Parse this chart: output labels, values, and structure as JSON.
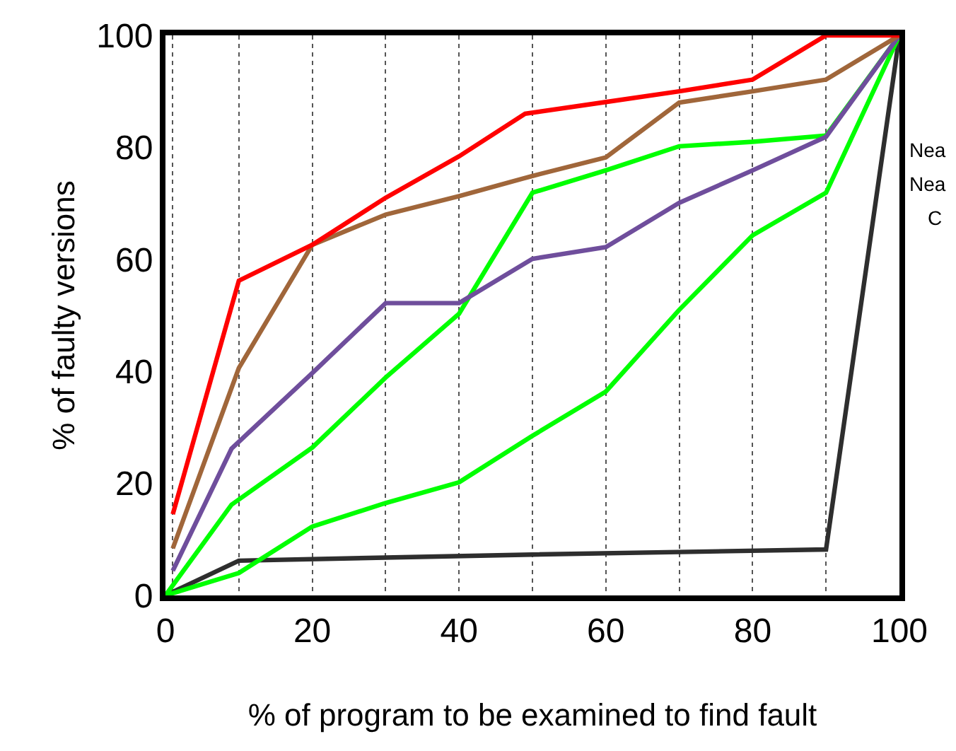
{
  "chart_data": {
    "type": "line",
    "xlabel": "% of program to be examined to find fault",
    "ylabel": "% of faulty versions",
    "xlim": [
      0,
      100
    ],
    "ylim": [
      0,
      100
    ],
    "xticks": [
      0,
      {
        "value": 1,
        "label": null
      },
      {
        "value": 10,
        "label": null
      },
      20,
      {
        "value": 30,
        "label": null
      },
      40,
      {
        "value": 50,
        "label": null
      },
      60,
      {
        "value": 70,
        "label": null
      },
      80,
      {
        "value": 90,
        "label": null
      },
      100
    ],
    "yticks": [
      0,
      20,
      40,
      60,
      80,
      100
    ],
    "grid": "x",
    "marker": "none",
    "line_style": "solid",
    "annotations": [
      "Nea",
      "Nea",
      "C"
    ],
    "series": [
      {
        "color": "#2e2e2e",
        "x": [
          0,
          10,
          50,
          90,
          100
        ],
        "values": [
          0,
          6.2,
          7.3,
          8.2,
          100
        ]
      },
      {
        "color": "#00ff00",
        "x": [
          0,
          10,
          20,
          30,
          40,
          50,
          60,
          70,
          80,
          90,
          100
        ],
        "values": [
          0,
          4,
          12.3,
          16.5,
          20.2,
          28.5,
          36.4,
          51,
          64.3,
          71.9,
          100
        ]
      },
      {
        "color": "#00ff00",
        "x": [
          0,
          9,
          20,
          30,
          40,
          50,
          60,
          70,
          80,
          90,
          100
        ],
        "values": [
          0,
          16.2,
          26.4,
          38.9,
          50.3,
          71.9,
          75.9,
          80.2,
          81,
          82.1,
          100
        ]
      },
      {
        "color": "#6f4e9c",
        "x": [
          1,
          9,
          20,
          30,
          40,
          50,
          60,
          70,
          80,
          90,
          100
        ],
        "values": [
          4.4,
          26.2,
          39.7,
          52.2,
          52.2,
          60.1,
          62.2,
          70.1,
          75.9,
          81.9,
          100
        ]
      },
      {
        "color": "#a0663a",
        "x": [
          1,
          10,
          20,
          30,
          40,
          50,
          60,
          70,
          80,
          90,
          100
        ],
        "values": [
          8.4,
          40.6,
          62.6,
          68,
          71.3,
          74.9,
          78.2,
          88,
          90,
          92.1,
          100
        ]
      },
      {
        "color": "#ff0000",
        "x": [
          1,
          10,
          20,
          30,
          40,
          49,
          60,
          70,
          80,
          90,
          100
        ],
        "values": [
          14.5,
          56.2,
          62.6,
          71,
          78.4,
          86,
          88.1,
          90,
          92.1,
          100,
          100
        ]
      }
    ]
  }
}
